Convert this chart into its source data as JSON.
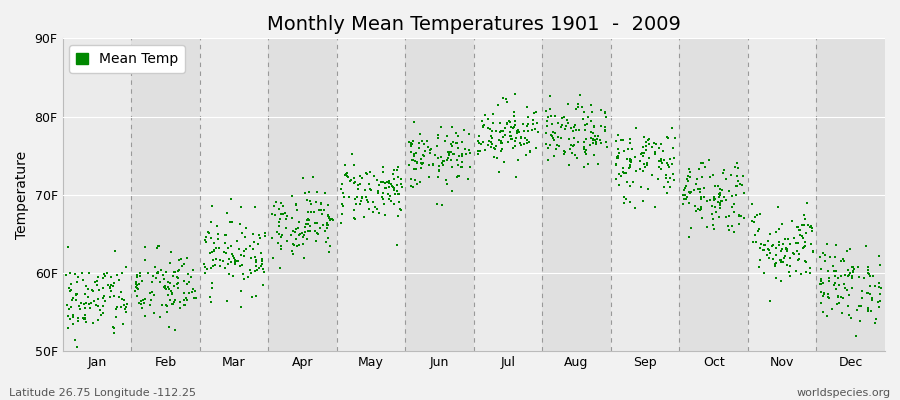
{
  "title": "Monthly Mean Temperatures 1901  -  2009",
  "ylabel": "Temperature",
  "ylim": [
    50,
    90
  ],
  "yticks": [
    50,
    60,
    70,
    80,
    90
  ],
  "ytick_labels": [
    "50F",
    "60F",
    "70F",
    "80F",
    "90F"
  ],
  "months": [
    "Jan",
    "Feb",
    "Mar",
    "Apr",
    "May",
    "Jun",
    "Jul",
    "Aug",
    "Sep",
    "Oct",
    "Nov",
    "Dec"
  ],
  "dot_color": "#008800",
  "bg_color": "#f2f2f2",
  "plot_bg_color_light": "#ebebeb",
  "plot_bg_color_dark": "#e0e0e0",
  "legend_label": "Mean Temp",
  "subtitle_left": "Latitude 26.75 Longitude -112.25",
  "subtitle_right": "worldspecies.org",
  "month_means": [
    56.5,
    58.0,
    62.5,
    66.5,
    70.5,
    74.5,
    78.0,
    77.5,
    74.0,
    70.0,
    63.5,
    58.5
  ],
  "month_stds": [
    2.5,
    2.5,
    2.5,
    2.2,
    2.0,
    2.0,
    2.0,
    2.0,
    2.5,
    2.5,
    2.5,
    2.5
  ],
  "n_years": 109,
  "seed": 42,
  "title_fontsize": 14,
  "axis_label_fontsize": 10,
  "tick_fontsize": 9,
  "subtitle_fontsize": 8
}
